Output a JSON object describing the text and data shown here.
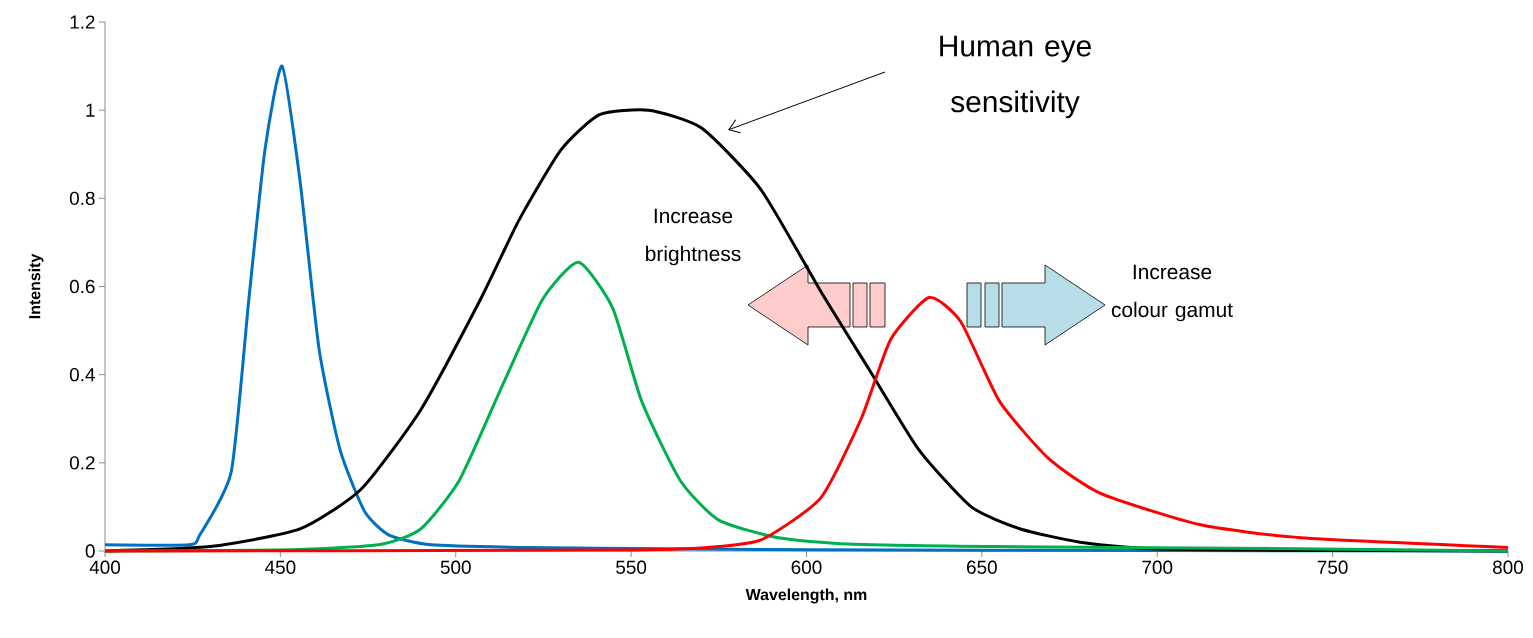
{
  "chart_data": {
    "type": "line",
    "xlabel": "Wavelength, nm",
    "ylabel": "Intensity",
    "xlim": [
      400,
      800
    ],
    "ylim": [
      0,
      1.2
    ],
    "xticks": [
      400,
      450,
      500,
      550,
      600,
      650,
      700,
      750,
      800
    ],
    "yticks": [
      0,
      0.2,
      0.4,
      0.6,
      0.8,
      1,
      1.2
    ],
    "marker": "none",
    "line_style": "solid",
    "annotations": [
      "Human eye sensitivity",
      "Increase brightness",
      "Increase colour gamut"
    ],
    "series": [
      {
        "color": "#0070c0",
        "x": [
          400,
          424,
          427,
          436,
          441,
          445.6,
          450.5,
          455.6,
          461,
          467,
          474,
          481,
          493,
          520,
          560,
          600,
          700,
          800
        ],
        "values": [
          0.014,
          0.014,
          0.036,
          0.18,
          0.57,
          0.91,
          1.1,
          0.84,
          0.46,
          0.23,
          0.09,
          0.036,
          0.014,
          0.008,
          0.005,
          0.003,
          0.001,
          0
        ]
      },
      {
        "color": "#000000",
        "x": [
          400,
          430,
          455.6,
          473,
          490,
          507,
          518,
          530,
          541,
          555,
          570,
          587,
          604,
          618,
          632,
          647,
          661,
          678,
          698,
          730,
          800
        ],
        "values": [
          0,
          0.01,
          0.05,
          0.14,
          0.32,
          0.57,
          0.75,
          0.91,
          0.99,
          1.0,
          0.96,
          0.82,
          0.59,
          0.41,
          0.23,
          0.1,
          0.05,
          0.02,
          0.005,
          0.002,
          0
        ]
      },
      {
        "color": "#00b050",
        "x": [
          400,
          450,
          478,
          490,
          501,
          513,
          524.7,
          535,
          544.8,
          553,
          564,
          575,
          592,
          612,
          655,
          740,
          800
        ],
        "values": [
          0,
          0.002,
          0.014,
          0.05,
          0.16,
          0.37,
          0.57,
          0.655,
          0.55,
          0.34,
          0.16,
          0.07,
          0.03,
          0.016,
          0.01,
          0.005,
          0
        ]
      },
      {
        "color": "#ff0000",
        "x": [
          400,
          541,
          570,
          587,
          604,
          615.6,
          624,
          635,
          644,
          655,
          669,
          684,
          712,
          741,
          800
        ],
        "values": [
          0,
          0.002,
          0.007,
          0.025,
          0.12,
          0.3,
          0.48,
          0.575,
          0.52,
          0.34,
          0.21,
          0.13,
          0.06,
          0.03,
          0.008
        ]
      }
    ]
  }
}
